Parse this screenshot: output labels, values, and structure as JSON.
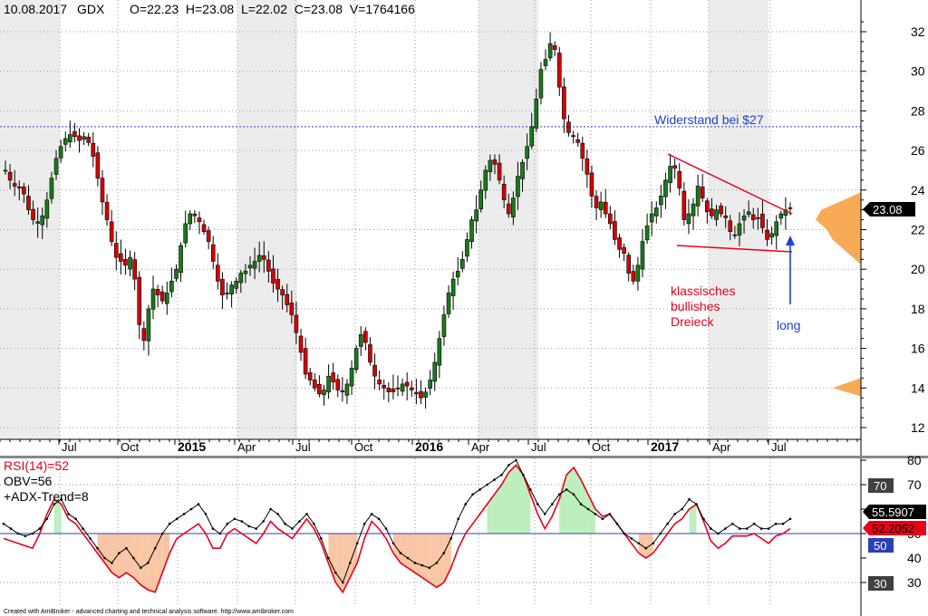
{
  "header": {
    "date": "10.08.2017",
    "symbol": "GDX",
    "ohlcv": "O=22.23  H=23.08  L=22.02  C=23.08  V=1764166"
  },
  "colors": {
    "up": "#1a7a1a",
    "down": "#d80000",
    "band": "#ececec",
    "volume_profile": "#f9a54e",
    "resistance": "#2b3fe0",
    "triangle": "#e8001a",
    "rsi": "#e8001a",
    "obv": "#000000",
    "rsi_fill_up": "#b6ecb6",
    "rsi_fill_down": "#f7c09a"
  },
  "annotations": {
    "resistance_label": "Widerstand bei $27",
    "triangle_line1": "klassisches",
    "triangle_line2": "bullishes",
    "triangle_line3": "Dreieck",
    "long_label": "long"
  },
  "last_price_badge": "23.08",
  "indicator": {
    "rsi_label": "RSI(14)=52",
    "obv_label": "OBV=56",
    "adx_label": "+ADX-Trend=8",
    "badge_70": "70",
    "badge_50": "50",
    "badge_30": "30",
    "badge_obv": "55.5907",
    "badge_rsi": "52.2052",
    "axis_ticks": [
      80,
      70,
      60,
      50,
      40,
      30
    ]
  },
  "footer": "Created with AmiBroker - advanced charting and technical analysis software. http://www.amibroker.com",
  "chart_data": {
    "type": "candlestick",
    "symbol": "GDX",
    "y_ticks": [
      12,
      14,
      16,
      18,
      20,
      22,
      24,
      26,
      28,
      30,
      32
    ],
    "ylim": [
      11.6,
      33.0
    ],
    "x_labels": [
      "Jul",
      "Oct",
      "2015",
      "Apr",
      "Jul",
      "Oct",
      "2016",
      "Apr",
      "Jul",
      "Oct",
      "2017",
      "Apr",
      "Jul"
    ],
    "resistance_level": 27.2,
    "series": [
      {
        "name": "price",
        "values": [
          25.0,
          24.5,
          24.2,
          24.1,
          23.8,
          23.0,
          22.5,
          22.4,
          22.7,
          23.5,
          24.6,
          25.6,
          26.2,
          26.6,
          26.8,
          26.7,
          26.5,
          26.7,
          26.4,
          25.7,
          24.6,
          23.4,
          22.5,
          21.4,
          20.6,
          20.4,
          20.2,
          20.6,
          19.5,
          17.2,
          16.4,
          18.0,
          19.0,
          18.7,
          18.4,
          18.8,
          19.4,
          20.0,
          21.2,
          22.3,
          22.8,
          22.7,
          22.4,
          21.9,
          21.4,
          20.4,
          19.4,
          18.7,
          18.8,
          19.2,
          19.4,
          19.8,
          19.9,
          20.2,
          20.4,
          20.7,
          20.5,
          19.9,
          19.3,
          19.0,
          18.7,
          18.2,
          17.7,
          16.8,
          15.8,
          14.7,
          14.4,
          14.0,
          13.7,
          13.9,
          14.6,
          14.3,
          13.9,
          13.8,
          14.2,
          15.0,
          16.0,
          16.7,
          16.3,
          15.3,
          14.6,
          14.2,
          14.0,
          13.8,
          13.8,
          14.0,
          14.2,
          14.1,
          13.9,
          13.7,
          13.5,
          13.8,
          14.4,
          15.3,
          16.5,
          17.7,
          18.8,
          19.5,
          19.9,
          20.5,
          21.5,
          22.5,
          23.0,
          24.0,
          25.0,
          25.5,
          25.3,
          24.5,
          23.5,
          22.8,
          23.6,
          24.7,
          25.4,
          26.2,
          27.2,
          28.6,
          30.1,
          30.6,
          31.4,
          31.1,
          29.2,
          27.6,
          26.9,
          26.7,
          26.4,
          25.6,
          24.8,
          23.7,
          23.1,
          23.4,
          22.8,
          22.3,
          21.5,
          21.0,
          20.8,
          19.8,
          19.4,
          20.2,
          21.4,
          22.2,
          22.8,
          23.1,
          23.7,
          24.5,
          25.2,
          25.1,
          24.1,
          22.5,
          22.8,
          23.3,
          24.2,
          23.6,
          22.9,
          22.7,
          23.0,
          22.8,
          22.6,
          21.9,
          21.7,
          22.3,
          22.7,
          22.9,
          22.5,
          22.6,
          22.1,
          21.5,
          21.8,
          22.4,
          22.8,
          23.0,
          23.08
        ]
      }
    ],
    "volume_profile": [
      {
        "price": 12.5,
        "weight": 0.05
      },
      {
        "price": 13.0,
        "weight": 0.15
      },
      {
        "price": 13.5,
        "weight": 0.55
      },
      {
        "price": 14.0,
        "weight": 0.85
      },
      {
        "price": 14.5,
        "weight": 0.6
      },
      {
        "price": 15.0,
        "weight": 0.25
      },
      {
        "price": 16.0,
        "weight": 0.2
      },
      {
        "price": 17.0,
        "weight": 0.22
      },
      {
        "price": 18.0,
        "weight": 0.25
      },
      {
        "price": 19.0,
        "weight": 0.35
      },
      {
        "price": 20.0,
        "weight": 0.55
      },
      {
        "price": 20.5,
        "weight": 0.65
      },
      {
        "price": 21.0,
        "weight": 0.75
      },
      {
        "price": 21.5,
        "weight": 0.85
      },
      {
        "price": 22.0,
        "weight": 0.9
      },
      {
        "price": 22.5,
        "weight": 1.0
      },
      {
        "price": 23.0,
        "weight": 0.95
      },
      {
        "price": 23.5,
        "weight": 0.75
      },
      {
        "price": 24.0,
        "weight": 0.55
      },
      {
        "price": 25.0,
        "weight": 0.4
      },
      {
        "price": 26.0,
        "weight": 0.3
      },
      {
        "price": 27.0,
        "weight": 0.2
      },
      {
        "price": 28.0,
        "weight": 0.15
      },
      {
        "price": 29.0,
        "weight": 0.12
      },
      {
        "price": 30.0,
        "weight": 0.15
      },
      {
        "price": 31.0,
        "weight": 0.1
      },
      {
        "price": 32.0,
        "weight": 0.03
      }
    ],
    "indicator_series": [
      {
        "name": "RSI(14)",
        "values": [
          48,
          47,
          46,
          45,
          44,
          50,
          58,
          64,
          62,
          56,
          54,
          50,
          46,
          42,
          38,
          34,
          32,
          34,
          32,
          29,
          27,
          26,
          34,
          42,
          48,
          50,
          52,
          54,
          50,
          44,
          44,
          50,
          52,
          50,
          48,
          46,
          50,
          55,
          52,
          50,
          48,
          52,
          56,
          52,
          46,
          38,
          30,
          26,
          32,
          38,
          48,
          55,
          52,
          48,
          42,
          38,
          36,
          34,
          32,
          30,
          28,
          30,
          36,
          44,
          50,
          54,
          58,
          62,
          66,
          70,
          75,
          78,
          74,
          66,
          58,
          52,
          57,
          64,
          74,
          77,
          72,
          66,
          60,
          57,
          58,
          54,
          50,
          46,
          42,
          40,
          42,
          46,
          50,
          54,
          56,
          60,
          62,
          55,
          47,
          44,
          46,
          49,
          49,
          49,
          50,
          48,
          46,
          49,
          50,
          52
        ]
      },
      {
        "name": "OBV",
        "values": [
          54,
          52,
          50,
          49,
          50,
          52,
          56,
          62,
          64,
          58,
          56,
          52,
          48,
          44,
          40,
          38,
          42,
          44,
          40,
          36,
          38,
          44,
          50,
          54,
          56,
          58,
          60,
          62,
          58,
          52,
          50,
          54,
          56,
          55,
          53,
          52,
          55,
          60,
          58,
          54,
          52,
          55,
          58,
          54,
          48,
          40,
          34,
          30,
          38,
          46,
          54,
          58,
          56,
          52,
          46,
          42,
          40,
          38,
          37,
          36,
          38,
          42,
          48,
          56,
          62,
          66,
          68,
          70,
          72,
          74,
          78,
          80,
          74,
          68,
          62,
          58,
          62,
          66,
          68,
          66,
          62,
          60,
          58,
          56,
          58,
          54,
          50,
          48,
          46,
          44,
          46,
          50,
          54,
          58,
          60,
          64,
          62,
          56,
          52,
          50,
          52,
          54,
          52,
          52,
          54,
          52,
          52,
          54,
          54,
          56
        ]
      }
    ],
    "indicator_ylim": [
      20,
      85
    ]
  }
}
